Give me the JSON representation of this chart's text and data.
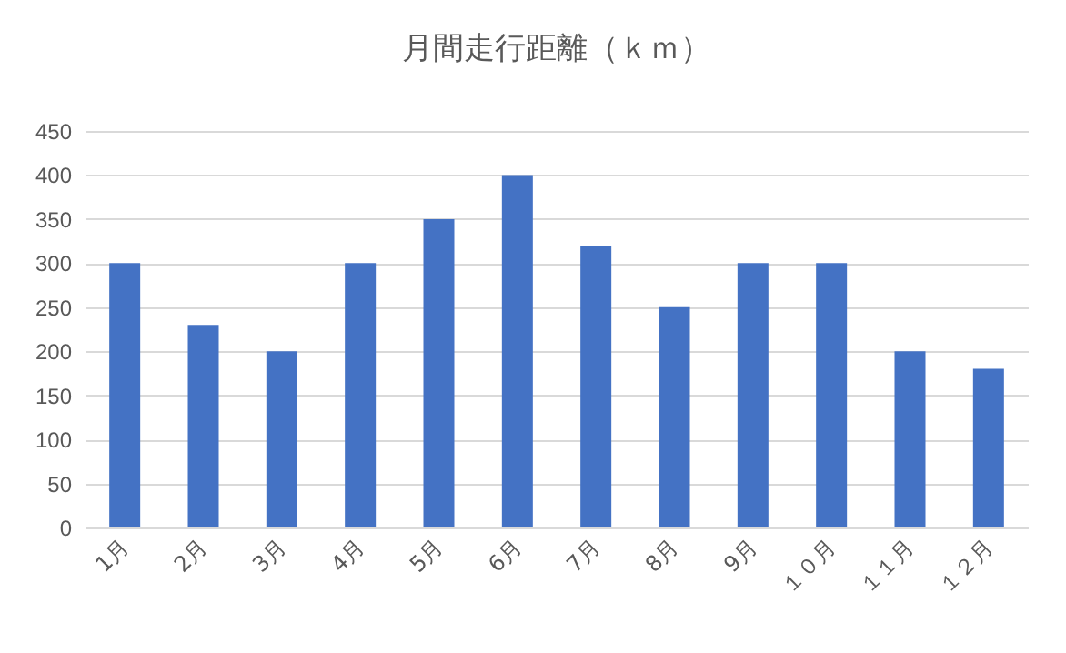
{
  "chart_data": {
    "type": "bar",
    "title": "月間走行距離（ｋｍ）",
    "categories": [
      "1月",
      "2月",
      "3月",
      "4月",
      "5月",
      "6月",
      "7月",
      "8月",
      "9月",
      "１０月",
      "１１月",
      "１２月"
    ],
    "values": [
      300,
      230,
      200,
      300,
      350,
      400,
      320,
      250,
      300,
      300,
      200,
      180
    ],
    "color": "#4472c4",
    "ylim": [
      0,
      450
    ],
    "yticks": [
      0,
      50,
      100,
      150,
      200,
      250,
      300,
      350,
      400,
      450
    ],
    "grid": "y"
  }
}
